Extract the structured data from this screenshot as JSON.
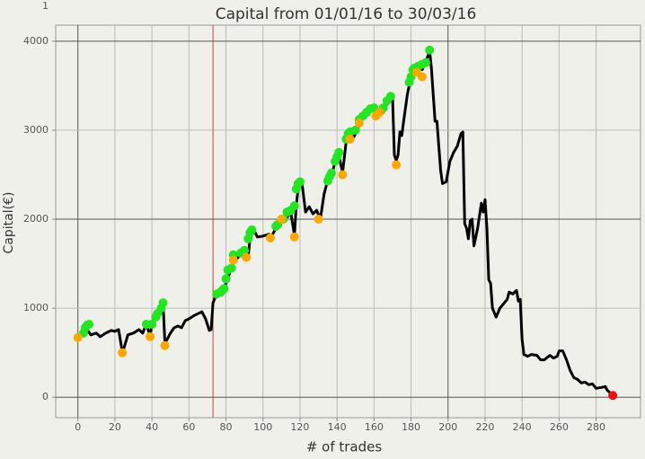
{
  "chart_data": {
    "type": "line",
    "corner_label": "1",
    "title": "Capital from 01/01/16 to 30/03/16",
    "x_label": "# of trades",
    "y_label": "Capital(€)",
    "xlim": [
      -12,
      304
    ],
    "ylim": [
      -230,
      4180
    ],
    "xticks": [
      0,
      20,
      40,
      60,
      80,
      100,
      120,
      140,
      160,
      180,
      200,
      220,
      240,
      260,
      280
    ],
    "yticks": [
      0,
      1000,
      2000,
      3000,
      4000
    ],
    "grid": true,
    "dark_xgrid": [
      0,
      200
    ],
    "dark_ygrid": [
      0,
      2000,
      4000
    ],
    "vline": {
      "x": 73,
      "color": "#d04040"
    },
    "series": [
      {
        "type": "line",
        "color": "#000000",
        "x": [
          0,
          3,
          5,
          7,
          10,
          12,
          15,
          18,
          20,
          22,
          24,
          25,
          27,
          30,
          33,
          35,
          37,
          39,
          40,
          42,
          44,
          46,
          47,
          48,
          50,
          52,
          54,
          56,
          58,
          60,
          63,
          65,
          67,
          69,
          71,
          72,
          73,
          75,
          77,
          79,
          81,
          83,
          84,
          85,
          88,
          90,
          92,
          93,
          95,
          97,
          100,
          103,
          105,
          107,
          109,
          111,
          113,
          115,
          117,
          118,
          119,
          120,
          121,
          123,
          125,
          127,
          129,
          131,
          133,
          135,
          137,
          139,
          141,
          143,
          145,
          147,
          149,
          151,
          153,
          155,
          157,
          159,
          161,
          163,
          165,
          167,
          169,
          170,
          171,
          172,
          173,
          174,
          175,
          176,
          178,
          180,
          182,
          184,
          186,
          188,
          190,
          191,
          193,
          194,
          196,
          197,
          199,
          201,
          203,
          205,
          207,
          208,
          209,
          210,
          211,
          212,
          213,
          214,
          216,
          218,
          219,
          220,
          221,
          222,
          223,
          224,
          226,
          228,
          230,
          232,
          233,
          235,
          237,
          238,
          239,
          240,
          241,
          243,
          245,
          248,
          250,
          252,
          255,
          257,
          259,
          260,
          262,
          264,
          266,
          268,
          270,
          272,
          274,
          276,
          278,
          280,
          283,
          285,
          286,
          289
        ],
        "values": [
          680,
          720,
          760,
          700,
          720,
          680,
          720,
          750,
          740,
          760,
          505,
          560,
          700,
          720,
          760,
          720,
          820,
          690,
          820,
          900,
          960,
          1060,
          620,
          640,
          720,
          780,
          800,
          780,
          860,
          880,
          920,
          940,
          960,
          880,
          750,
          760,
          1060,
          1160,
          1180,
          1220,
          1340,
          1450,
          1600,
          1540,
          1600,
          1620,
          1580,
          1780,
          1880,
          1800,
          1810,
          1830,
          1820,
          1900,
          1960,
          2000,
          2020,
          2080,
          1820,
          2160,
          2340,
          2400,
          2420,
          2080,
          2140,
          2060,
          2100,
          2000,
          2280,
          2440,
          2480,
          2650,
          2720,
          2520,
          2880,
          2950,
          2920,
          3000,
          3120,
          3160,
          3200,
          3240,
          3250,
          3180,
          3200,
          3300,
          3370,
          3380,
          2720,
          2660,
          2720,
          2980,
          2940,
          3100,
          3400,
          3600,
          3700,
          3720,
          3680,
          3760,
          3900,
          3700,
          3100,
          3100,
          2550,
          2400,
          2420,
          2650,
          2750,
          2820,
          2960,
          2980,
          1950,
          1900,
          1780,
          1980,
          2000,
          1700,
          1900,
          2180,
          2080,
          2220,
          1900,
          1320,
          1280,
          1000,
          900,
          1000,
          1050,
          1100,
          1180,
          1160,
          1200,
          1080,
          1100,
          650,
          480,
          460,
          480,
          470,
          420,
          420,
          470,
          440,
          460,
          520,
          520,
          420,
          300,
          220,
          200,
          160,
          170,
          140,
          150,
          100,
          110,
          120,
          80,
          20
        ]
      },
      {
        "type": "scatter",
        "color": "#22e622",
        "x": [
          3,
          4,
          5,
          6,
          37,
          40,
          42,
          43,
          45,
          46,
          75,
          77,
          78,
          79,
          80,
          81,
          83,
          84,
          88,
          90,
          92,
          93,
          94,
          107,
          108,
          111,
          113,
          115,
          117,
          118,
          119,
          120,
          135,
          136,
          137,
          139,
          140,
          141,
          145,
          146,
          147,
          150,
          152,
          154,
          156,
          158,
          160,
          165,
          167,
          169,
          179,
          180,
          181,
          182,
          184,
          186,
          188,
          190
        ],
        "values": [
          720,
          780,
          810,
          820,
          820,
          820,
          900,
          940,
          1000,
          1060,
          1160,
          1180,
          1200,
          1220,
          1330,
          1430,
          1450,
          1600,
          1620,
          1650,
          1780,
          1850,
          1880,
          1920,
          1940,
          2000,
          2080,
          2100,
          2150,
          2340,
          2400,
          2420,
          2430,
          2480,
          2520,
          2650,
          2700,
          2750,
          2900,
          2960,
          2980,
          3000,
          3120,
          3160,
          3200,
          3240,
          3250,
          3250,
          3330,
          3380,
          3540,
          3600,
          3680,
          3700,
          3720,
          3740,
          3760,
          3900
        ]
      },
      {
        "type": "scatter",
        "color": "#ffa500",
        "x": [
          0,
          24,
          39,
          47,
          84,
          91,
          104,
          110,
          117,
          130,
          143,
          147,
          152,
          161,
          163,
          172,
          183,
          186
        ],
        "values": [
          670,
          500,
          680,
          580,
          1540,
          1570,
          1790,
          2000,
          1800,
          2000,
          2500,
          2900,
          3080,
          3160,
          3200,
          2610,
          3650,
          3600
        ]
      },
      {
        "type": "scatter",
        "color": "#ee1111",
        "x": [
          289
        ],
        "values": [
          20
        ]
      }
    ]
  }
}
